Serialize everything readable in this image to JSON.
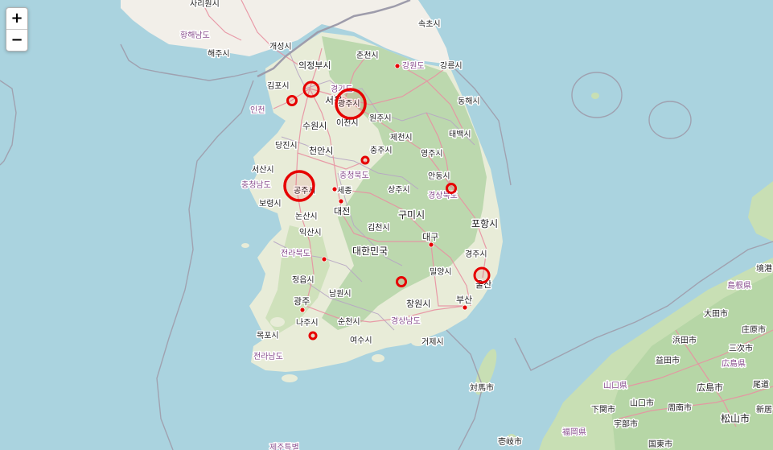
{
  "zoom": {
    "in_label": "+",
    "out_label": "−"
  },
  "colors": {
    "sea": "#aad3df",
    "land": "#f2efe9",
    "forest": "#aed1a0",
    "road": "#e892a2",
    "border": "#9e9cab",
    "marker": "#e60000",
    "label": "#222222",
    "region_label": "#8a4f8f"
  },
  "labels": {
    "sariwon": "사리원시",
    "hwanghae": "황해남도",
    "haeju": "해주시",
    "kaesong": "개성시",
    "uijeongbu": "의정부시",
    "chuncheon": "춘천시",
    "gangwon": "강원도",
    "gangneung": "강릉시",
    "sokcho": "속초시",
    "gimpo": "김포시",
    "seoul": "서울",
    "gyeonggi": "경기도",
    "incheon": "인천",
    "gwangju_si": "광주시",
    "suwon": "수원시",
    "icheon": "이천시",
    "wonju": "원주시",
    "donghae": "동해시",
    "taebaek": "태백시",
    "jecheon": "제천시",
    "dangjin": "당진시",
    "cheonan": "천안시",
    "chungju": "충주시",
    "yeongju": "영주시",
    "seosan": "서산시",
    "chungbuk": "충청북도",
    "chungnam": "충청남도",
    "gongju": "공주시",
    "sejong": "세종",
    "sangju": "상주시",
    "andong": "안동시",
    "gyeongbuk": "경상북도",
    "boryeong": "보령시",
    "daejeon": "대전",
    "nonsan": "논산시",
    "gumi": "구미시",
    "pohang": "포항시",
    "iksan": "익산시",
    "gimcheon": "김천시",
    "daegu": "대구",
    "jeonbuk": "전라북도",
    "korea": "대한민국",
    "gyeongju": "경주시",
    "jeongeup": "정읍시",
    "miryang": "밀양시",
    "ulsan": "울산",
    "namwon": "남원시",
    "gwangju": "광주",
    "changwon": "창원시",
    "busan": "부산",
    "naju": "나주시",
    "suncheon": "순천시",
    "gyeongnam": "경상남도",
    "mokpo": "목포시",
    "yeosu": "여수시",
    "geoje": "거제시",
    "jeonnam": "전라남도",
    "tsushima": "対馬市",
    "iki": "壱岐市",
    "jeju": "제주특별",
    "sakai": "境港",
    "shimane": "島根県",
    "oda": "大田市",
    "hamada": "浜田市",
    "shobara": "庄原市",
    "miyoshi": "三次市",
    "masuda": "益田市",
    "hiroshima": "広島県",
    "yamaguchi_ken": "山口県",
    "hiroshima_si": "広島市",
    "onomichi": "尾道",
    "shimonoseki": "下関市",
    "yamaguchi_si": "山口市",
    "shunan": "周南市",
    "niimi": "新居",
    "ube": "宇部市",
    "matsuyama": "松山市",
    "fukuoka": "福岡県",
    "kunisaki": "国東市"
  },
  "markers": [
    {
      "name": "seoul",
      "size": "large",
      "hollow": true
    },
    {
      "name": "incheon-west",
      "size": "medium",
      "hollow": true
    },
    {
      "name": "gwangju-si",
      "size": "xlarge",
      "hollow": true
    },
    {
      "name": "gangwon",
      "size": "dot",
      "hollow": false
    },
    {
      "name": "chungju",
      "size": "small",
      "hollow": true
    },
    {
      "name": "gongju",
      "size": "xlarge",
      "hollow": true
    },
    {
      "name": "sejong",
      "size": "dot",
      "hollow": false
    },
    {
      "name": "daejeon",
      "size": "dot",
      "hollow": false
    },
    {
      "name": "andong",
      "size": "medium",
      "hollow": true
    },
    {
      "name": "jeonbuk",
      "size": "dot",
      "hollow": false
    },
    {
      "name": "daegu",
      "size": "dot",
      "hollow": false
    },
    {
      "name": "gyeongnam",
      "size": "medium",
      "hollow": true
    },
    {
      "name": "ulsan",
      "size": "large",
      "hollow": true
    },
    {
      "name": "busan",
      "size": "dot",
      "hollow": false
    },
    {
      "name": "gwangju",
      "size": "dot",
      "hollow": false
    },
    {
      "name": "jeonnam",
      "size": "small",
      "hollow": true
    }
  ]
}
